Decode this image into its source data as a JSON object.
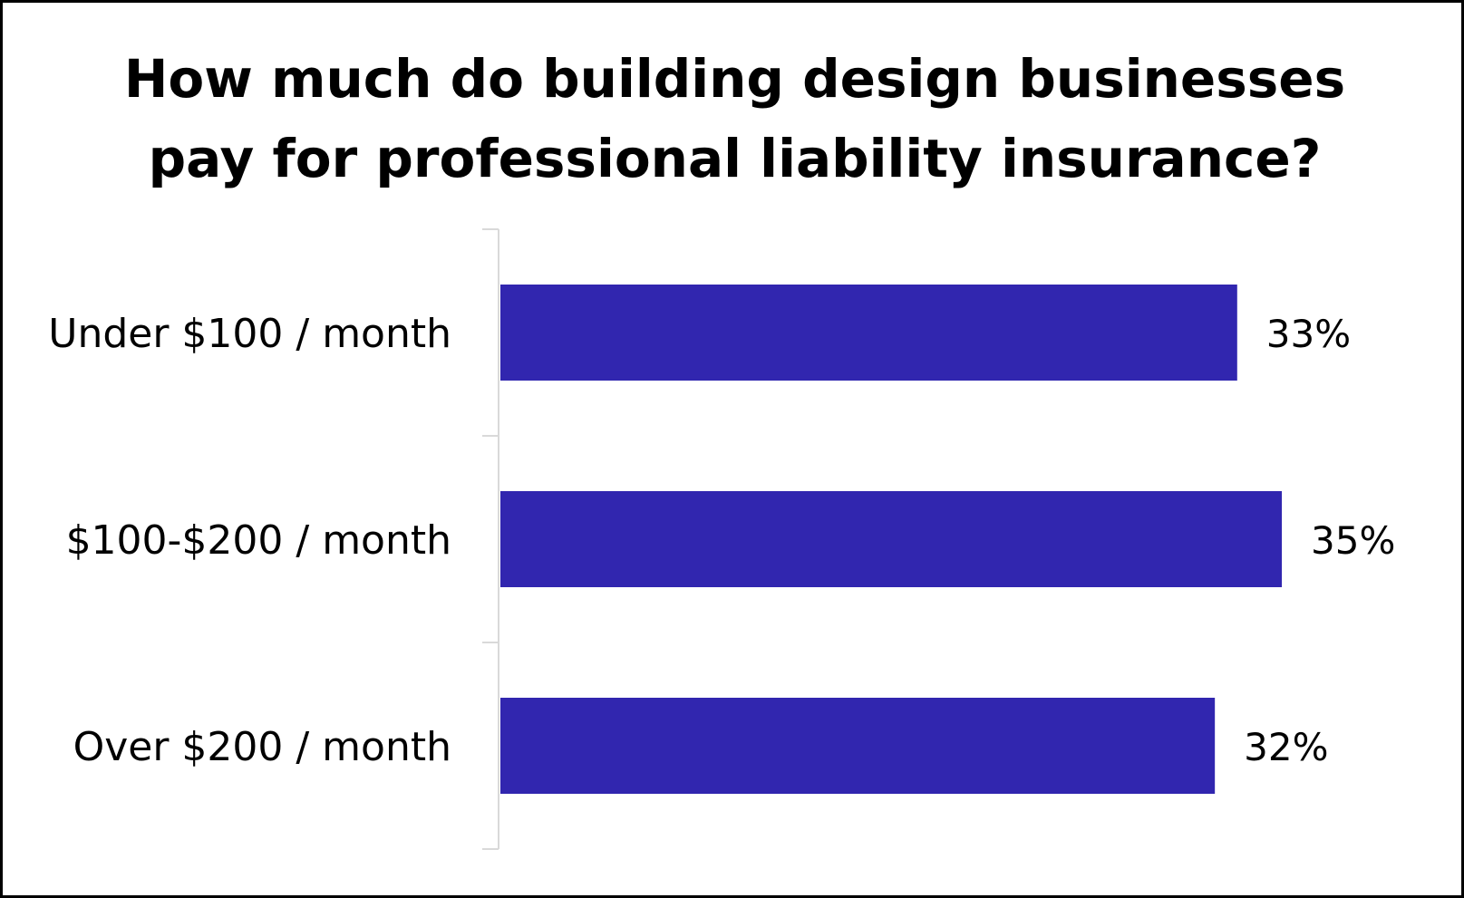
{
  "chart_data": {
    "type": "bar",
    "orientation": "horizontal",
    "title_lines": [
      "How much do building design businesses",
      "pay for professional liability insurance?"
    ],
    "categories": [
      "Under $100 / month",
      "$100-$200 / month",
      "Over $200 / month"
    ],
    "values": [
      33,
      35,
      32
    ],
    "value_labels": [
      "33%",
      "35%",
      "32%"
    ],
    "xlim": [
      0,
      40
    ],
    "grid": false,
    "bar_color": "#3126AF",
    "axis_color": "#D9D9D9"
  }
}
